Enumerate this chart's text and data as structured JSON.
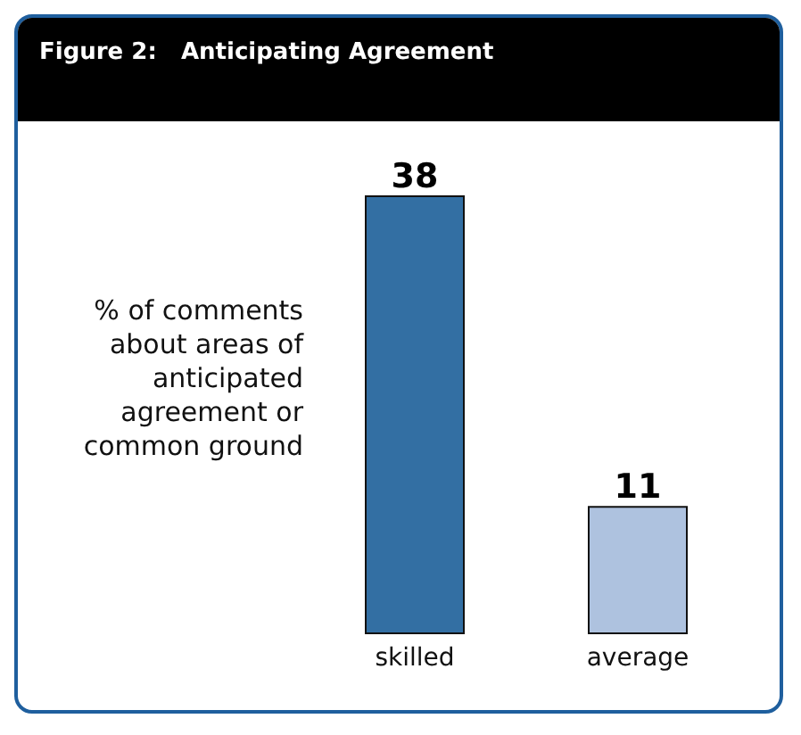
{
  "chart_data": {
    "type": "bar",
    "title": "Figure 2:   Anticipating Agreement",
    "ylabel": "% of comments about areas of anticipated agreement or common ground",
    "categories": [
      "skilled",
      "average"
    ],
    "values": [
      38,
      11
    ],
    "colors": [
      "#336fa3",
      "#aec2df"
    ],
    "data_labels": true,
    "grid": false,
    "legend": false
  }
}
